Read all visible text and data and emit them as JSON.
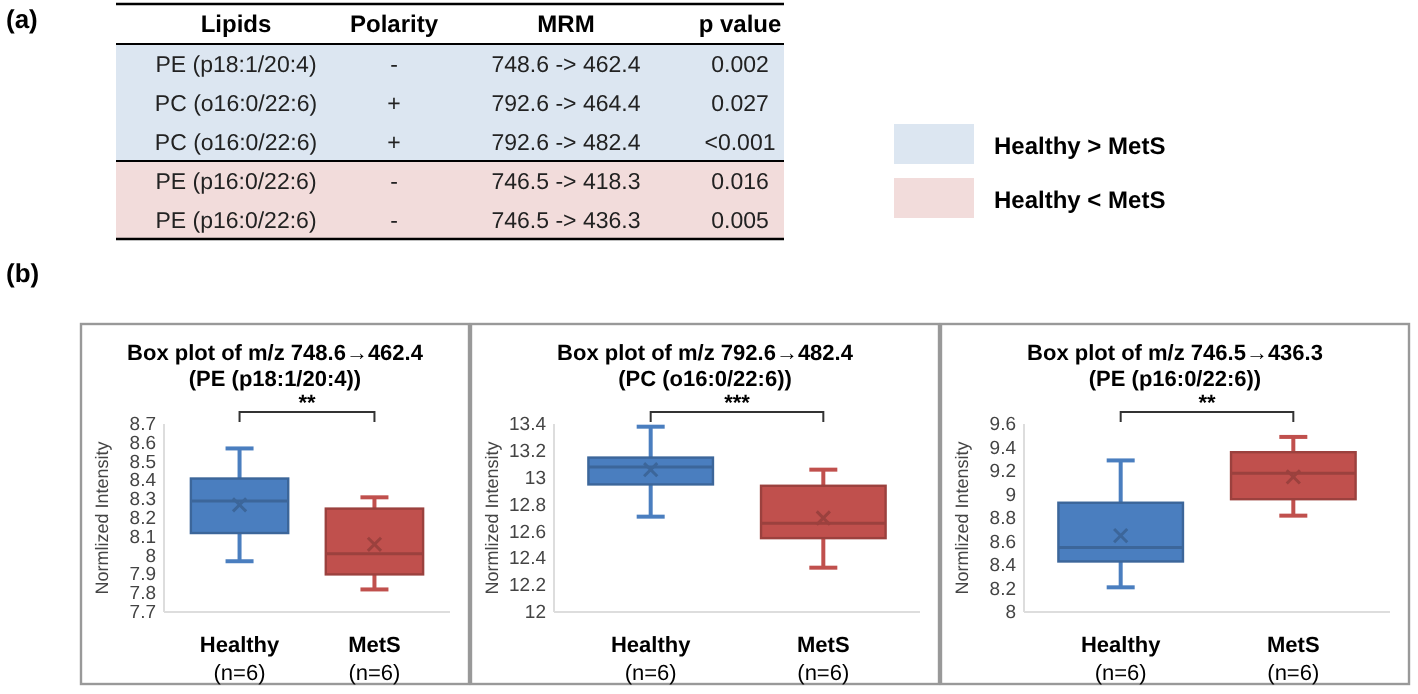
{
  "chart_data": [
    {
      "type": "other",
      "title": "(a)",
      "categories": [
        "Lipids",
        "Polarity",
        "MRM",
        "p value"
      ],
      "cell_labels": [
        [
          "PE (p18:1/20:4)",
          "-",
          "748.6 -> 462.4",
          "0.002"
        ],
        [
          "PC (o16:0/22:6)",
          "+",
          "792.6 -> 464.4",
          "0.027"
        ],
        [
          "PC (o16:0/22:6)",
          "+",
          "792.6 -> 482.4",
          "<0.001"
        ],
        [
          "PE (p16:0/22:6)",
          "-",
          "746.5 -> 418.3",
          "0.016"
        ],
        [
          "PE (p16:0/22:6)",
          "-",
          "746.5 -> 436.3",
          "0.005"
        ]
      ],
      "colors": [
        "#dce6f1",
        "#dce6f1",
        "#dce6f1",
        "#f2dcdb",
        "#f2dcdb"
      ],
      "annotations": [
        "Healthy > MetS",
        "Healthy < MetS"
      ]
    },
    {
      "type": "box",
      "title": "Box plot of m/z 748.6→462.4",
      "subtitle": "(PE (p18:1/20:4))",
      "ylabel": "Normlized Intensity",
      "annotations": [
        "**",
        "(b)"
      ],
      "categories": [
        "Healthy\n(n=6)",
        "MetS\n(n=6)"
      ],
      "colors": [
        "#4a7ebf",
        "#c0504d"
      ],
      "boxes": [
        {
          "low": 7.97,
          "q1": 8.12,
          "median": 8.29,
          "q3": 8.41,
          "high": 8.57,
          "mean": 8.27
        },
        {
          "low": 7.82,
          "q1": 7.9,
          "median": 8.01,
          "q3": 8.25,
          "high": 8.31,
          "mean": 8.06
        }
      ],
      "ylim": [
        7.7,
        8.7
      ],
      "yticks": [
        7.7,
        7.8,
        7.9,
        8,
        8.1,
        8.2,
        8.3,
        8.4,
        8.5,
        8.6,
        8.7
      ]
    },
    {
      "type": "box",
      "title": "Box plot of m/z 792.6→482.4",
      "subtitle": "(PC (o16:0/22:6))",
      "ylabel": "Normlized Intensity",
      "annotations": [
        "***"
      ],
      "categories": [
        "Healthy\n(n=6)",
        "MetS\n(n=6)"
      ],
      "colors": [
        "#4a7ebf",
        "#c0504d"
      ],
      "boxes": [
        {
          "low": 12.71,
          "q1": 12.95,
          "median": 13.08,
          "q3": 13.15,
          "high": 13.38,
          "mean": 13.06
        },
        {
          "low": 12.33,
          "q1": 12.55,
          "median": 12.66,
          "q3": 12.94,
          "high": 13.06,
          "mean": 12.7
        }
      ],
      "ylim": [
        12,
        13.4
      ],
      "yticks": [
        12,
        12.2,
        12.4,
        12.6,
        12.8,
        13,
        13.2,
        13.4
      ]
    },
    {
      "type": "box",
      "title": "Box plot of m/z 746.5→436.3",
      "subtitle": "(PE (p16:0/22:6))",
      "ylabel": "Normlized Intensity",
      "annotations": [
        "**"
      ],
      "categories": [
        "Healthy\n(n=6)",
        "MetS\n(n=6)"
      ],
      "colors": [
        "#4a7ebf",
        "#c0504d"
      ],
      "boxes": [
        {
          "low": 8.21,
          "q1": 8.43,
          "median": 8.55,
          "q3": 8.93,
          "high": 9.29,
          "mean": 8.65
        },
        {
          "low": 8.82,
          "q1": 8.96,
          "median": 9.18,
          "q3": 9.36,
          "high": 9.49,
          "mean": 9.15
        }
      ],
      "ylim": [
        8,
        9.6
      ],
      "yticks": [
        8,
        8.2,
        8.4,
        8.6,
        8.8,
        9,
        9.2,
        9.4,
        9.6
      ]
    }
  ]
}
